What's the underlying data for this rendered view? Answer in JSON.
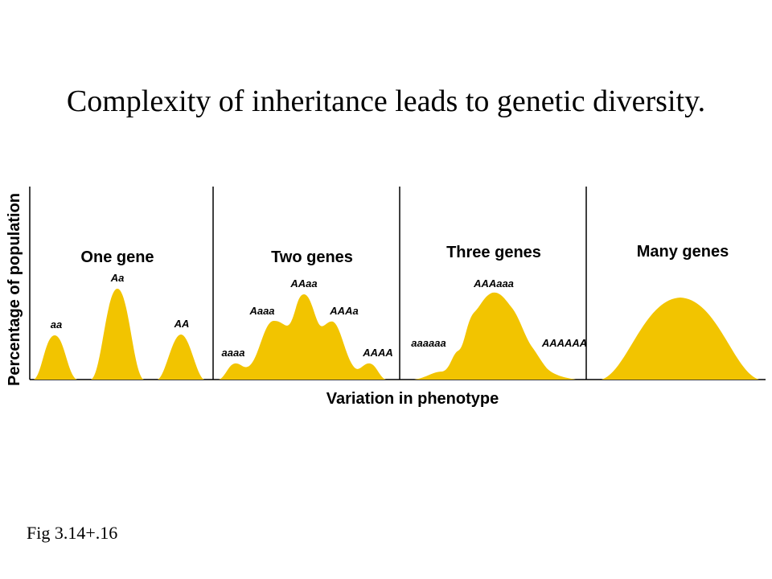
{
  "slide": {
    "title": "Complexity of inheritance leads to genetic diversity.",
    "caption": "Fig 3.14+.16"
  },
  "figure": {
    "y_axis_label": "Percentage of population",
    "x_axis_label": "Variation in phenotype",
    "fill_color": "#F2C400",
    "panels": [
      {
        "title": "One gene",
        "genotypes": [
          "aa",
          "Aa",
          "AA"
        ]
      },
      {
        "title": "Two genes",
        "genotypes": [
          "aaaa",
          "Aaaa",
          "AAaa",
          "AAAa",
          "AAAA"
        ]
      },
      {
        "title": "Three genes",
        "genotypes": [
          "aaaaaa",
          "AAAaaa",
          "AAAAAA"
        ]
      },
      {
        "title": "Many genes",
        "genotypes": []
      }
    ]
  }
}
